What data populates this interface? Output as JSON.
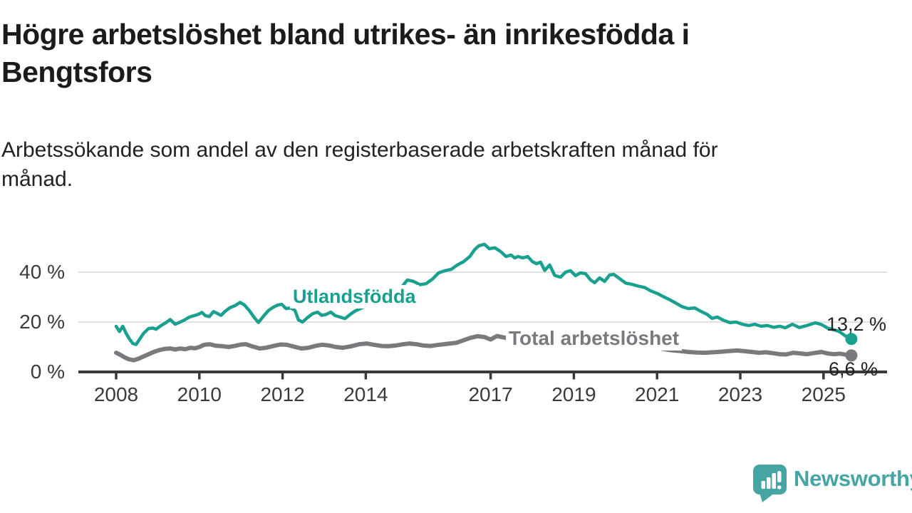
{
  "header": {
    "title_lines": [
      "Högre arbetslöshet bland utrikes- än inrikesfödda i",
      "Bengtsfors"
    ],
    "subtitle_lines": [
      "Arbetssökande som andel av den registerbaserade arbetskraften månad för",
      "månad."
    ]
  },
  "footer": {
    "logo_text": "Newsworthy",
    "logo_icon": "speech-bubble-bar-chart-icon",
    "logo_color": "#45a5a2"
  },
  "chart_data": {
    "type": "line",
    "title": "Högre arbetslöshet bland utrikes- än inrikesfödda i Bengtsfors",
    "subtitle": "Arbetssökande som andel av den registerbaserade arbetskraften månad för månad.",
    "unit": "%",
    "grid": true,
    "legend": "inline-labels",
    "x_axis": {
      "tick_labels": [
        "2008",
        "2010",
        "2012",
        "2014",
        "2017",
        "2019",
        "2021",
        "2023",
        "2025"
      ],
      "tick_years": [
        2008,
        2010,
        2012,
        2014,
        2017,
        2019,
        2021,
        2023,
        2025
      ],
      "range_years": [
        2008,
        2025.67
      ]
    },
    "y_axis": {
      "ticks": [
        {
          "value": 0,
          "label": "0 %"
        },
        {
          "value": 20,
          "label": "20 %"
        },
        {
          "value": 40,
          "label": "40 %"
        }
      ],
      "range": [
        0,
        52
      ]
    },
    "series": [
      {
        "name": "Utlandsfödda",
        "color": "#1aa08e",
        "end_label": "13,2 %",
        "end_value": 13.2,
        "stroke_width": 4.5,
        "points": [
          [
            2008.0,
            18.3
          ],
          [
            2008.08,
            16.2
          ],
          [
            2008.16,
            18.3
          ],
          [
            2008.24,
            15.5
          ],
          [
            2008.32,
            13.2
          ],
          [
            2008.4,
            11.4
          ],
          [
            2008.48,
            11.0
          ],
          [
            2008.56,
            13.0
          ],
          [
            2008.66,
            15.5
          ],
          [
            2008.78,
            17.4
          ],
          [
            2008.88,
            17.6
          ],
          [
            2008.96,
            17.1
          ],
          [
            2009.08,
            18.6
          ],
          [
            2009.2,
            19.8
          ],
          [
            2009.3,
            21.0
          ],
          [
            2009.42,
            19.1
          ],
          [
            2009.54,
            20.0
          ],
          [
            2009.64,
            20.8
          ],
          [
            2009.76,
            22.0
          ],
          [
            2009.88,
            22.6
          ],
          [
            2009.98,
            23.1
          ],
          [
            2010.06,
            23.9
          ],
          [
            2010.14,
            22.6
          ],
          [
            2010.24,
            22.2
          ],
          [
            2010.34,
            24.2
          ],
          [
            2010.44,
            23.4
          ],
          [
            2010.52,
            22.7
          ],
          [
            2010.62,
            24.3
          ],
          [
            2010.74,
            25.8
          ],
          [
            2010.86,
            26.6
          ],
          [
            2010.98,
            27.9
          ],
          [
            2011.08,
            26.9
          ],
          [
            2011.2,
            24.6
          ],
          [
            2011.32,
            21.8
          ],
          [
            2011.42,
            19.8
          ],
          [
            2011.54,
            22.3
          ],
          [
            2011.66,
            24.6
          ],
          [
            2011.76,
            25.8
          ],
          [
            2011.88,
            26.8
          ],
          [
            2011.98,
            27.1
          ],
          [
            2012.08,
            25.4
          ],
          [
            2012.2,
            25.7
          ],
          [
            2012.3,
            24.6
          ],
          [
            2012.38,
            20.9
          ],
          [
            2012.48,
            20.0
          ],
          [
            2012.6,
            21.8
          ],
          [
            2012.72,
            23.3
          ],
          [
            2012.84,
            24.0
          ],
          [
            2012.94,
            22.7
          ],
          [
            2013.04,
            23.0
          ],
          [
            2013.16,
            24.0
          ],
          [
            2013.26,
            22.6
          ],
          [
            2013.38,
            22.0
          ],
          [
            2013.5,
            21.4
          ],
          [
            2013.62,
            23.0
          ],
          [
            2013.74,
            24.4
          ],
          [
            2013.88,
            25.5
          ],
          [
            2014.0,
            26.3
          ],
          [
            2014.2,
            27.8
          ],
          [
            2014.4,
            29.4
          ],
          [
            2014.6,
            31.0
          ],
          [
            2014.8,
            32.7
          ],
          [
            2015.0,
            36.9
          ],
          [
            2015.15,
            36.3
          ],
          [
            2015.3,
            35.0
          ],
          [
            2015.45,
            35.4
          ],
          [
            2015.6,
            37.2
          ],
          [
            2015.75,
            39.7
          ],
          [
            2015.9,
            40.6
          ],
          [
            2016.05,
            41.1
          ],
          [
            2016.2,
            42.9
          ],
          [
            2016.35,
            44.2
          ],
          [
            2016.5,
            46.3
          ],
          [
            2016.62,
            49.1
          ],
          [
            2016.72,
            50.6
          ],
          [
            2016.85,
            51.2
          ],
          [
            2016.97,
            49.4
          ],
          [
            2017.1,
            49.8
          ],
          [
            2017.24,
            48.3
          ],
          [
            2017.37,
            46.3
          ],
          [
            2017.49,
            46.9
          ],
          [
            2017.58,
            45.7
          ],
          [
            2017.66,
            46.3
          ],
          [
            2017.77,
            45.7
          ],
          [
            2017.89,
            46.3
          ],
          [
            2018.0,
            44.3
          ],
          [
            2018.1,
            43.4
          ],
          [
            2018.2,
            44.0
          ],
          [
            2018.3,
            40.7
          ],
          [
            2018.42,
            42.9
          ],
          [
            2018.54,
            38.7
          ],
          [
            2018.68,
            38.0
          ],
          [
            2018.8,
            40.0
          ],
          [
            2018.92,
            40.6
          ],
          [
            2019.04,
            38.6
          ],
          [
            2019.16,
            39.7
          ],
          [
            2019.28,
            39.4
          ],
          [
            2019.4,
            36.9
          ],
          [
            2019.5,
            35.8
          ],
          [
            2019.62,
            37.7
          ],
          [
            2019.74,
            36.3
          ],
          [
            2019.86,
            38.9
          ],
          [
            2019.96,
            39.1
          ],
          [
            2020.1,
            37.4
          ],
          [
            2020.25,
            35.6
          ],
          [
            2020.4,
            35.1
          ],
          [
            2020.55,
            34.4
          ],
          [
            2020.7,
            33.9
          ],
          [
            2020.85,
            32.5
          ],
          [
            2021.0,
            31.5
          ],
          [
            2021.15,
            30.2
          ],
          [
            2021.3,
            29.0
          ],
          [
            2021.45,
            27.6
          ],
          [
            2021.6,
            26.2
          ],
          [
            2021.75,
            25.4
          ],
          [
            2021.9,
            25.7
          ],
          [
            2022.05,
            24.3
          ],
          [
            2022.2,
            23.1
          ],
          [
            2022.32,
            21.5
          ],
          [
            2022.45,
            22.0
          ],
          [
            2022.6,
            20.7
          ],
          [
            2022.75,
            19.8
          ],
          [
            2022.9,
            20.0
          ],
          [
            2023.05,
            19.1
          ],
          [
            2023.2,
            18.6
          ],
          [
            2023.35,
            19.1
          ],
          [
            2023.5,
            18.3
          ],
          [
            2023.65,
            18.6
          ],
          [
            2023.8,
            17.9
          ],
          [
            2023.95,
            18.3
          ],
          [
            2024.08,
            17.7
          ],
          [
            2024.25,
            19.1
          ],
          [
            2024.42,
            17.8
          ],
          [
            2024.6,
            18.6
          ],
          [
            2024.8,
            19.7
          ],
          [
            2024.95,
            19.0
          ],
          [
            2025.1,
            17.6
          ],
          [
            2025.25,
            16.9
          ],
          [
            2025.38,
            16.2
          ],
          [
            2025.52,
            14.5
          ],
          [
            2025.67,
            13.2
          ]
        ]
      },
      {
        "name": "Total arbetslöshet",
        "color": "#7a7a7e",
        "end_label": "6,6 %",
        "end_value": 6.6,
        "stroke_width": 6,
        "points": [
          [
            2008.0,
            7.7
          ],
          [
            2008.1,
            6.9
          ],
          [
            2008.2,
            5.9
          ],
          [
            2008.3,
            5.1
          ],
          [
            2008.42,
            4.7
          ],
          [
            2008.54,
            5.3
          ],
          [
            2008.66,
            6.2
          ],
          [
            2008.78,
            7.1
          ],
          [
            2008.9,
            8.0
          ],
          [
            2009.02,
            8.7
          ],
          [
            2009.16,
            9.2
          ],
          [
            2009.3,
            9.4
          ],
          [
            2009.42,
            9.0
          ],
          [
            2009.54,
            9.4
          ],
          [
            2009.66,
            9.1
          ],
          [
            2009.78,
            9.7
          ],
          [
            2009.9,
            9.5
          ],
          [
            2010.0,
            10.0
          ],
          [
            2010.12,
            10.9
          ],
          [
            2010.25,
            11.1
          ],
          [
            2010.4,
            10.5
          ],
          [
            2010.55,
            10.3
          ],
          [
            2010.7,
            10.0
          ],
          [
            2010.85,
            10.4
          ],
          [
            2011.0,
            11.0
          ],
          [
            2011.12,
            11.1
          ],
          [
            2011.28,
            10.2
          ],
          [
            2011.45,
            9.4
          ],
          [
            2011.6,
            9.7
          ],
          [
            2011.78,
            10.4
          ],
          [
            2011.95,
            11.0
          ],
          [
            2012.1,
            10.9
          ],
          [
            2012.28,
            10.1
          ],
          [
            2012.45,
            9.4
          ],
          [
            2012.62,
            9.7
          ],
          [
            2012.8,
            10.5
          ],
          [
            2012.95,
            10.9
          ],
          [
            2013.12,
            10.6
          ],
          [
            2013.28,
            10.0
          ],
          [
            2013.45,
            9.7
          ],
          [
            2013.65,
            10.3
          ],
          [
            2013.85,
            11.1
          ],
          [
            2014.02,
            11.4
          ],
          [
            2014.2,
            10.9
          ],
          [
            2014.38,
            10.4
          ],
          [
            2014.55,
            10.3
          ],
          [
            2014.72,
            10.6
          ],
          [
            2014.9,
            11.1
          ],
          [
            2015.05,
            11.4
          ],
          [
            2015.22,
            11.1
          ],
          [
            2015.38,
            10.6
          ],
          [
            2015.55,
            10.4
          ],
          [
            2015.72,
            10.8
          ],
          [
            2015.88,
            11.1
          ],
          [
            2016.02,
            11.4
          ],
          [
            2016.18,
            11.7
          ],
          [
            2016.35,
            12.7
          ],
          [
            2016.52,
            13.7
          ],
          [
            2016.68,
            14.3
          ],
          [
            2016.85,
            14.0
          ],
          [
            2017.0,
            13.0
          ],
          [
            2017.15,
            14.4
          ],
          [
            2017.3,
            13.9
          ],
          [
            2017.5,
            13.2
          ],
          [
            2017.7,
            12.7
          ],
          [
            2017.95,
            12.2
          ],
          [
            2018.2,
            11.8
          ],
          [
            2018.5,
            11.4
          ],
          [
            2018.8,
            11.1
          ],
          [
            2019.1,
            10.8
          ],
          [
            2019.4,
            10.4
          ],
          [
            2019.7,
            10.1
          ],
          [
            2020.0,
            10.3
          ],
          [
            2020.2,
            10.9
          ],
          [
            2020.35,
            11.3
          ],
          [
            2020.55,
            11.0
          ],
          [
            2020.75,
            10.5
          ],
          [
            2020.95,
            9.9
          ],
          [
            2021.15,
            9.2
          ],
          [
            2021.35,
            8.7
          ],
          [
            2021.55,
            8.4
          ],
          [
            2021.75,
            8.0
          ],
          [
            2021.95,
            7.8
          ],
          [
            2022.15,
            7.7
          ],
          [
            2022.35,
            7.9
          ],
          [
            2022.55,
            8.1
          ],
          [
            2022.75,
            8.4
          ],
          [
            2022.92,
            8.6
          ],
          [
            2023.1,
            8.3
          ],
          [
            2023.28,
            8.0
          ],
          [
            2023.45,
            7.7
          ],
          [
            2023.62,
            7.9
          ],
          [
            2023.8,
            7.5
          ],
          [
            2023.95,
            7.1
          ],
          [
            2024.1,
            7.0
          ],
          [
            2024.28,
            7.7
          ],
          [
            2024.45,
            7.4
          ],
          [
            2024.6,
            7.1
          ],
          [
            2024.78,
            7.6
          ],
          [
            2024.95,
            8.0
          ],
          [
            2025.1,
            7.4
          ],
          [
            2025.25,
            7.1
          ],
          [
            2025.4,
            7.3
          ],
          [
            2025.55,
            6.9
          ],
          [
            2025.67,
            6.6
          ]
        ]
      }
    ]
  }
}
